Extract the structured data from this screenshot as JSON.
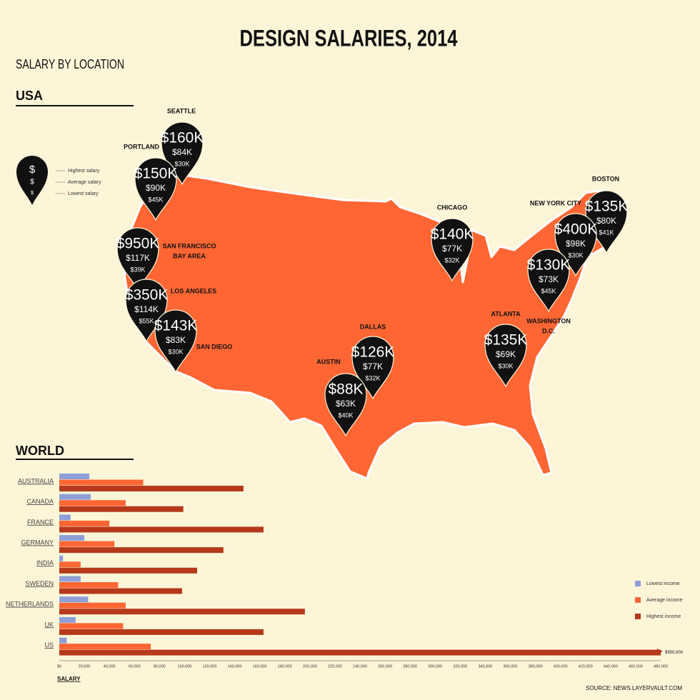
{
  "title": "DESIGN SALARIES, 2014",
  "subtitle": "SALARY BY LOCATION",
  "usa": {
    "heading": "USA",
    "legend": {
      "symbols": [
        "$",
        "$",
        "$"
      ],
      "labels": [
        "Highest salary",
        "Average salary",
        "Lowest salary"
      ]
    },
    "cities": [
      {
        "name": [
          "SEATTLE"
        ],
        "highest": "$160K",
        "average": "$84K",
        "lowest": "$30K"
      },
      {
        "name": [
          "PORTLAND"
        ],
        "highest": "$150K",
        "average": "$90K",
        "lowest": "$45K"
      },
      {
        "name": [
          "SAN FRANCISCO",
          "BAY AREA"
        ],
        "highest": "$950K",
        "average": "$117K",
        "lowest": "$39K"
      },
      {
        "name": [
          "LOS ANGELES"
        ],
        "highest": "$350K",
        "average": "$114K",
        "lowest": "$55K"
      },
      {
        "name": [
          "SAN DIEGO"
        ],
        "highest": "$143K",
        "average": "$83K",
        "lowest": "$30K"
      },
      {
        "name": [
          "DALLAS"
        ],
        "highest": "$126K",
        "average": "$77K",
        "lowest": "$32K"
      },
      {
        "name": [
          "AUSTIN"
        ],
        "highest": "$88K",
        "average": "$63K",
        "lowest": "$40K"
      },
      {
        "name": [
          "CHICAGO"
        ],
        "highest": "$140K",
        "average": "$77K",
        "lowest": "$32K"
      },
      {
        "name": [
          "ATLANTA"
        ],
        "highest": "$135K",
        "average": "$69K",
        "lowest": "$30K"
      },
      {
        "name": [
          "BOSTON"
        ],
        "highest": "$135K",
        "average": "$80K",
        "lowest": "$41K"
      },
      {
        "name": [
          "NEW YORK CITY"
        ],
        "highest": "$400K",
        "average": "$98K",
        "lowest": "$30K"
      },
      {
        "name": [
          "WASHINGTON",
          "D.C."
        ],
        "highest": "$130K",
        "average": "$73K",
        "lowest": "$45K"
      }
    ]
  },
  "world": {
    "heading": "WORLD"
  },
  "chart_data": {
    "type": "bar",
    "orientation": "horizontal",
    "categories": [
      "AUSTRALIA",
      "CANADA",
      "FRANCE",
      "GERMANY",
      "INDIA",
      "SWEDEN",
      "NETHERLANDS",
      "UK",
      "US"
    ],
    "series": [
      {
        "name": "Lowest income",
        "color": "#8e9fd8",
        "values": [
          24000,
          25000,
          9000,
          20000,
          3000,
          17000,
          23000,
          13000,
          6000
        ]
      },
      {
        "name": "Average income",
        "color": "#ff6633",
        "values": [
          67000,
          53000,
          40000,
          44000,
          17000,
          47000,
          53000,
          51000,
          73000
        ]
      },
      {
        "name": "Highest income",
        "color": "#b5391a",
        "values": [
          147000,
          99000,
          163000,
          131000,
          110000,
          98000,
          196000,
          163000,
          950000
        ],
        "value_labels": [
          null,
          null,
          null,
          null,
          null,
          null,
          null,
          null,
          "$950,000"
        ]
      }
    ],
    "xlim": [
      0,
      480000
    ],
    "xticks": [
      {
        "value": 0,
        "label": "$0"
      },
      {
        "value": 20000,
        "label": "20,000"
      },
      {
        "value": 40000,
        "label": "40,000"
      },
      {
        "value": 60000,
        "label": "60,000"
      },
      {
        "value": 80000,
        "label": "80,000"
      },
      {
        "value": 100000,
        "label": "100,000"
      },
      {
        "value": 120000,
        "label": "120,000"
      },
      {
        "value": 140000,
        "label": "140,000"
      },
      {
        "value": 160000,
        "label": "160,000"
      },
      {
        "value": 180000,
        "label": "180,000"
      },
      {
        "value": 200000,
        "label": "200,000"
      },
      {
        "value": 220000,
        "label": "220,000"
      },
      {
        "value": 240000,
        "label": "240,000"
      },
      {
        "value": 260000,
        "label": "260,000"
      },
      {
        "value": 280000,
        "label": "280,000"
      },
      {
        "value": 300000,
        "label": "300,000"
      },
      {
        "value": 320000,
        "label": "320,000"
      },
      {
        "value": 340000,
        "label": "340,000"
      },
      {
        "value": 360000,
        "label": "360,000"
      },
      {
        "value": 380000,
        "label": "380,000"
      },
      {
        "value": 400000,
        "label": "400,000"
      },
      {
        "value": 420000,
        "label": "420,000"
      },
      {
        "value": 440000,
        "label": "440,000"
      },
      {
        "value": 460000,
        "label": "460,000"
      },
      {
        "value": 480000,
        "label": "480,000"
      }
    ],
    "xlabel": "SALARY",
    "legend": "right"
  },
  "source": "SOURCE: NEWS.LAYERVAULT.COM"
}
